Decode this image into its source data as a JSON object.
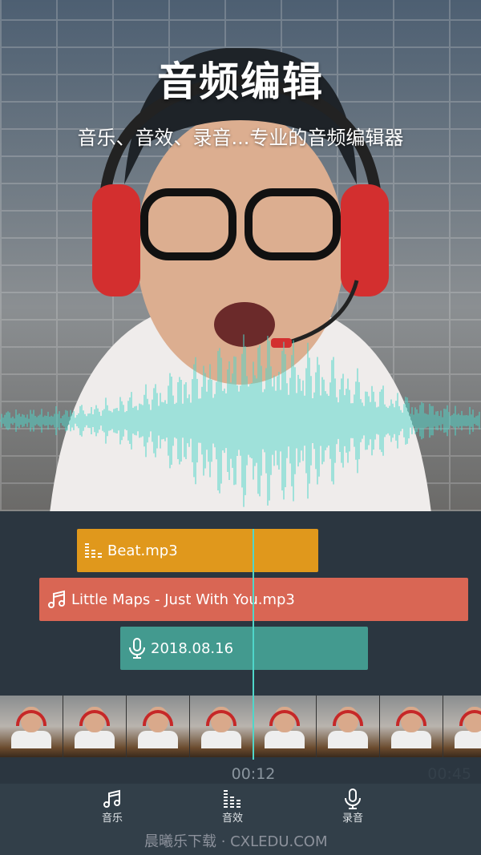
{
  "hero": {
    "title": "音频编辑",
    "subtitle": "音乐、音效、录音...专业的音频编辑器",
    "waveform_color": "#4fd6c9"
  },
  "timeline": {
    "clips": [
      {
        "label": "Beat.mp3",
        "icon": "equalizer-icon",
        "color": "#e0981c"
      },
      {
        "label": "Little Maps - Just With You.mp3",
        "icon": "music-note-icon",
        "color": "#d96654"
      },
      {
        "label": "2018.08.16",
        "icon": "microphone-icon",
        "color": "#439a8f"
      }
    ],
    "current_time": "00:12",
    "end_time": "00:45"
  },
  "tabs": [
    {
      "label": "音乐",
      "icon": "music-note-icon"
    },
    {
      "label": "音效",
      "icon": "equalizer-icon"
    },
    {
      "label": "录音",
      "icon": "microphone-icon"
    }
  ],
  "watermark": "晨曦乐下载 · CXLEDU.COM"
}
